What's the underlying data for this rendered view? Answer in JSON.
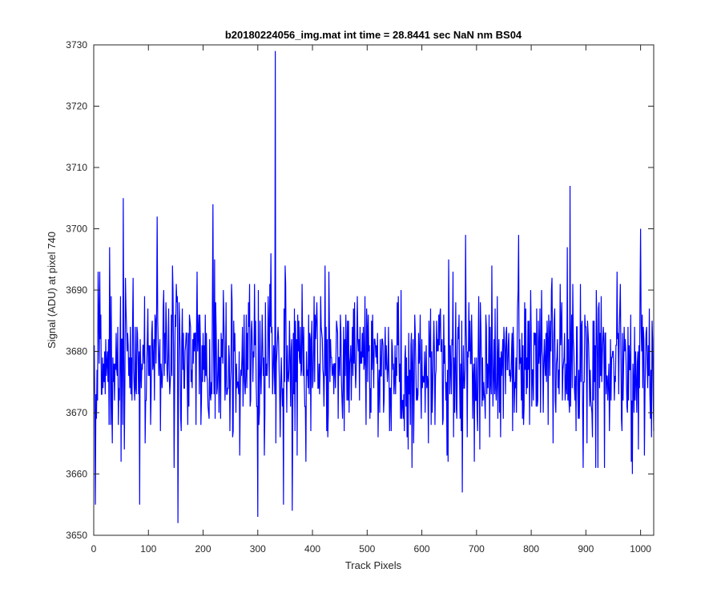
{
  "chart_data": {
    "type": "line",
    "title": "b20180224056_img.mat int time = 28.8441 sec  NaN nm BS04",
    "xlabel": "Track Pixels",
    "ylabel": "Signal (ADU) at pixel 740",
    "xlim": [
      0,
      1024
    ],
    "ylim": [
      3650,
      3730
    ],
    "xticks": [
      0,
      100,
      200,
      300,
      400,
      500,
      600,
      700,
      800,
      900,
      1000
    ],
    "yticks": [
      3650,
      3660,
      3670,
      3680,
      3690,
      3700,
      3710,
      3720,
      3730
    ],
    "grid": false,
    "line_color": "#0000ff",
    "noise": {
      "mean": 3678,
      "spread": 8,
      "min": 3652,
      "max": 3707,
      "seed": 20180224
    },
    "x_start": 1,
    "x_end": 1024,
    "notable_points": [
      {
        "x": 1,
        "y": 3681
      },
      {
        "x": 3,
        "y": 3655
      },
      {
        "x": 29,
        "y": 3697
      },
      {
        "x": 54,
        "y": 3705
      },
      {
        "x": 84,
        "y": 3655
      },
      {
        "x": 116,
        "y": 3702
      },
      {
        "x": 154,
        "y": 3652
      },
      {
        "x": 218,
        "y": 3704
      },
      {
        "x": 300,
        "y": 3653
      },
      {
        "x": 332,
        "y": 3729
      },
      {
        "x": 363,
        "y": 3654
      },
      {
        "x": 871,
        "y": 3707
      },
      {
        "x": 1000,
        "y": 3700
      },
      {
        "x": 1024,
        "y": 3667
      }
    ]
  }
}
